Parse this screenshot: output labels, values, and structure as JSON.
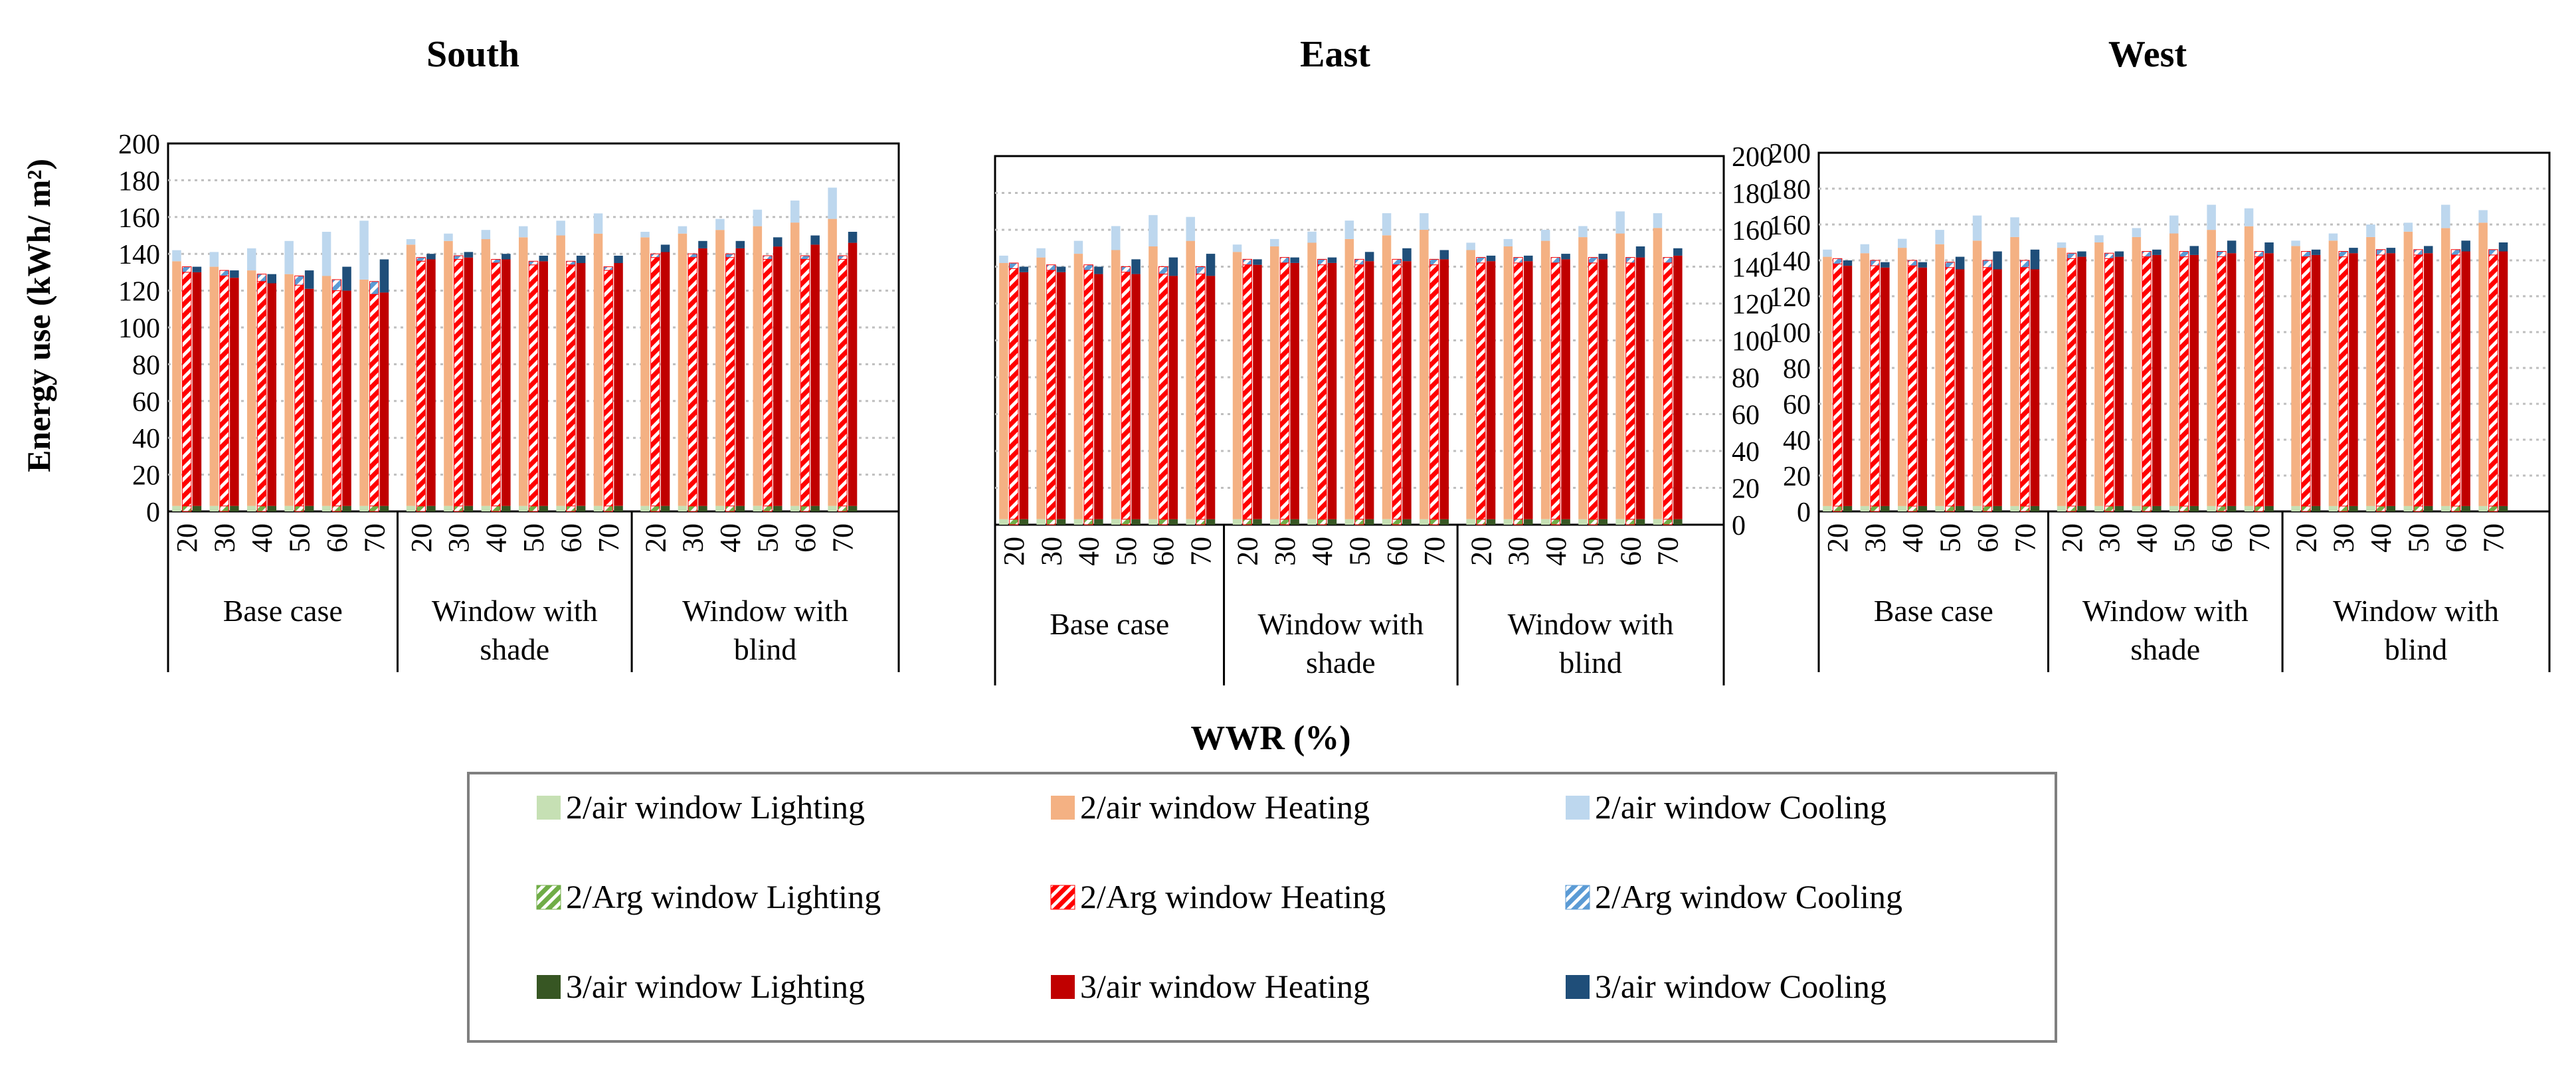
{
  "figure": {
    "ylabel": "Energy use (kWh/ m²)",
    "xlabel": "WWR (%)"
  },
  "colors": {
    "air2_lighting": "#c6e0b4",
    "air2_heating": "#f4b183",
    "air2_cooling": "#bdd7ee",
    "arg2_lighting": "#70ad47",
    "arg2_heating": "#ff0000",
    "arg2_cooling": "#5b9bd5",
    "air3_lighting": "#375623",
    "air3_heating": "#c00000",
    "air3_cooling": "#1f4e79"
  },
  "legend": [
    {
      "label": "2/air window Lighting",
      "color": "#c6e0b4",
      "pattern": "solid"
    },
    {
      "label": "2/air window Heating",
      "color": "#f4b183",
      "pattern": "solid"
    },
    {
      "label": "2/air window Cooling",
      "color": "#bdd7ee",
      "pattern": "solid"
    },
    {
      "label": "2/Arg window Lighting",
      "color": "#70ad47",
      "pattern": "hatch"
    },
    {
      "label": "2/Arg window Heating",
      "color": "#ff0000",
      "pattern": "hatch"
    },
    {
      "label": "2/Arg window Cooling",
      "color": "#5b9bd5",
      "pattern": "hatch"
    },
    {
      "label": "3/air window Lighting",
      "color": "#375623",
      "pattern": "solid"
    },
    {
      "label": "3/air window Heating",
      "color": "#c00000",
      "pattern": "solid"
    },
    {
      "label": "3/air window Cooling",
      "color": "#1f4e79",
      "pattern": "solid"
    }
  ],
  "chart_data": [
    {
      "type": "bar",
      "stacked": true,
      "title": "South",
      "ylabel": "Energy use (kWh/ m²)",
      "xlabel": "WWR (%)",
      "ylim": [
        0,
        200
      ],
      "yticks": [
        0,
        20,
        40,
        60,
        80,
        100,
        120,
        140,
        160,
        180,
        200
      ],
      "groups": [
        {
          "label": "Base case",
          "categories": [
            "20",
            "30",
            "40",
            "50",
            "60",
            "70"
          ]
        },
        {
          "label": "Window with shade",
          "categories": [
            "20",
            "30",
            "40",
            "50",
            "60",
            "70"
          ]
        },
        {
          "label": "Window with blind",
          "categories": [
            "20",
            "30",
            "40",
            "50",
            "60",
            "70"
          ]
        }
      ],
      "series": [
        {
          "name": "2/air window",
          "lighting": [
            3,
            3,
            3,
            3,
            3,
            3,
            3,
            3,
            3,
            3,
            3,
            3,
            3,
            3,
            3,
            3,
            3,
            3
          ],
          "heating": [
            133,
            130,
            128,
            126,
            125,
            123,
            142,
            144,
            145,
            146,
            147,
            148,
            146,
            148,
            150,
            152,
            154,
            156
          ],
          "cooling": [
            6,
            8,
            12,
            18,
            24,
            32,
            3,
            4,
            5,
            6,
            8,
            11,
            3,
            4,
            6,
            9,
            12,
            17
          ]
        },
        {
          "name": "2/Arg window",
          "lighting": [
            3,
            3,
            3,
            3,
            3,
            3,
            3,
            3,
            3,
            3,
            3,
            3,
            3,
            3,
            3,
            3,
            3,
            3
          ],
          "heating": [
            127,
            125,
            122,
            120,
            117,
            115,
            133,
            134,
            132,
            131,
            131,
            128,
            135,
            135,
            135,
            134,
            134,
            134
          ],
          "cooling": [
            3,
            3,
            4,
            5,
            6,
            7,
            2,
            2,
            2,
            2,
            2,
            2,
            2,
            2,
            2,
            2,
            2,
            2
          ]
        },
        {
          "name": "3/air window",
          "lighting": [
            3,
            3,
            3,
            3,
            3,
            3,
            3,
            3,
            3,
            3,
            3,
            3,
            3,
            3,
            3,
            3,
            3,
            3
          ],
          "heating": [
            127,
            124,
            121,
            118,
            117,
            116,
            134,
            135,
            134,
            133,
            132,
            132,
            138,
            140,
            140,
            141,
            142,
            143
          ],
          "cooling": [
            3,
            4,
            5,
            10,
            13,
            18,
            3,
            3,
            3,
            3,
            4,
            4,
            4,
            4,
            4,
            5,
            5,
            6
          ]
        }
      ]
    },
    {
      "type": "bar",
      "stacked": true,
      "title": "East",
      "ylabel": "Energy use (kWh/ m²)",
      "xlabel": "WWR (%)",
      "ylim": [
        0,
        200
      ],
      "yticks": [
        0,
        20,
        40,
        60,
        80,
        100,
        120,
        140,
        160,
        180,
        200
      ],
      "groups": [
        {
          "label": "Base case",
          "categories": [
            "20",
            "30",
            "40",
            "50",
            "60",
            "70"
          ]
        },
        {
          "label": "Window with shade",
          "categories": [
            "20",
            "30",
            "40",
            "50",
            "60",
            "70"
          ]
        },
        {
          "label": "Window with blind",
          "categories": [
            "20",
            "30",
            "40",
            "50",
            "60",
            "70"
          ]
        }
      ],
      "series": [
        {
          "name": "2/air window",
          "lighting": [
            3,
            3,
            3,
            3,
            3,
            3,
            3,
            3,
            3,
            3,
            3,
            3,
            3,
            3,
            3,
            3,
            3,
            3
          ],
          "heating": [
            139,
            142,
            144,
            146,
            148,
            151,
            145,
            148,
            150,
            152,
            154,
            157,
            146,
            148,
            151,
            153,
            155,
            158
          ],
          "cooling": [
            4,
            5,
            7,
            13,
            17,
            13,
            4,
            4,
            6,
            10,
            12,
            9,
            4,
            4,
            6,
            6,
            12,
            8
          ]
        },
        {
          "name": "2/Arg window",
          "lighting": [
            3,
            3,
            3,
            3,
            3,
            3,
            3,
            3,
            3,
            3,
            3,
            3,
            3,
            3,
            3,
            3,
            3,
            3
          ],
          "heating": [
            136,
            135,
            135,
            134,
            133,
            133,
            138,
            139,
            138,
            138,
            138,
            138,
            139,
            139,
            139,
            139,
            139,
            139
          ],
          "cooling": [
            3,
            3,
            3,
            3,
            4,
            4,
            3,
            3,
            3,
            3,
            3,
            3,
            3,
            3,
            3,
            3,
            3,
            3
          ]
        },
        {
          "name": "3/air window",
          "lighting": [
            3,
            3,
            3,
            3,
            3,
            3,
            3,
            3,
            3,
            3,
            3,
            3,
            3,
            3,
            3,
            3,
            3,
            3
          ],
          "heating": [
            134,
            134,
            133,
            133,
            132,
            132,
            138,
            139,
            139,
            140,
            140,
            141,
            140,
            140,
            141,
            141,
            142,
            143
          ],
          "cooling": [
            3,
            3,
            4,
            8,
            10,
            12,
            3,
            3,
            3,
            5,
            7,
            5,
            3,
            3,
            3,
            3,
            6,
            4
          ]
        }
      ]
    },
    {
      "type": "bar",
      "stacked": true,
      "title": "West",
      "ylabel": "Energy use (kWh/ m²)",
      "xlabel": "WWR (%)",
      "ylim": [
        0,
        200
      ],
      "yticks": [
        0,
        20,
        40,
        60,
        80,
        100,
        120,
        140,
        160,
        180,
        200
      ],
      "groups": [
        {
          "label": "Base case",
          "categories": [
            "20",
            "30",
            "40",
            "50",
            "60",
            "70"
          ]
        },
        {
          "label": "Window with shade",
          "categories": [
            "20",
            "30",
            "40",
            "50",
            "60",
            "70"
          ]
        },
        {
          "label": "Window with blind",
          "categories": [
            "20",
            "30",
            "40",
            "50",
            "60",
            "70"
          ]
        }
      ],
      "series": [
        {
          "name": "2/air window",
          "lighting": [
            3,
            3,
            3,
            3,
            3,
            3,
            3,
            3,
            3,
            3,
            3,
            3,
            3,
            3,
            3,
            3,
            3,
            3
          ],
          "heating": [
            139,
            141,
            144,
            146,
            148,
            150,
            144,
            147,
            150,
            152,
            154,
            156,
            145,
            148,
            150,
            153,
            155,
            158
          ],
          "cooling": [
            4,
            5,
            5,
            8,
            14,
            11,
            3,
            4,
            5,
            10,
            14,
            10,
            3,
            4,
            7,
            5,
            13,
            7
          ]
        },
        {
          "name": "2/Arg window",
          "lighting": [
            3,
            3,
            3,
            3,
            3,
            3,
            3,
            3,
            3,
            3,
            3,
            3,
            3,
            3,
            3,
            3,
            3,
            3
          ],
          "heating": [
            135,
            134,
            134,
            133,
            133,
            133,
            138,
            138,
            139,
            139,
            139,
            139,
            139,
            139,
            140,
            140,
            140,
            140
          ],
          "cooling": [
            3,
            3,
            3,
            3,
            4,
            4,
            3,
            3,
            3,
            3,
            3,
            3,
            3,
            3,
            3,
            3,
            3,
            3
          ]
        },
        {
          "name": "3/air window",
          "lighting": [
            3,
            3,
            3,
            3,
            3,
            3,
            3,
            3,
            3,
            3,
            3,
            3,
            3,
            3,
            3,
            3,
            3,
            3
          ],
          "heating": [
            134,
            133,
            133,
            132,
            132,
            132,
            139,
            139,
            140,
            140,
            141,
            141,
            140,
            141,
            141,
            141,
            142,
            142
          ],
          "cooling": [
            3,
            3,
            3,
            7,
            10,
            11,
            3,
            3,
            3,
            5,
            7,
            6,
            3,
            3,
            3,
            4,
            6,
            5
          ]
        }
      ]
    }
  ]
}
